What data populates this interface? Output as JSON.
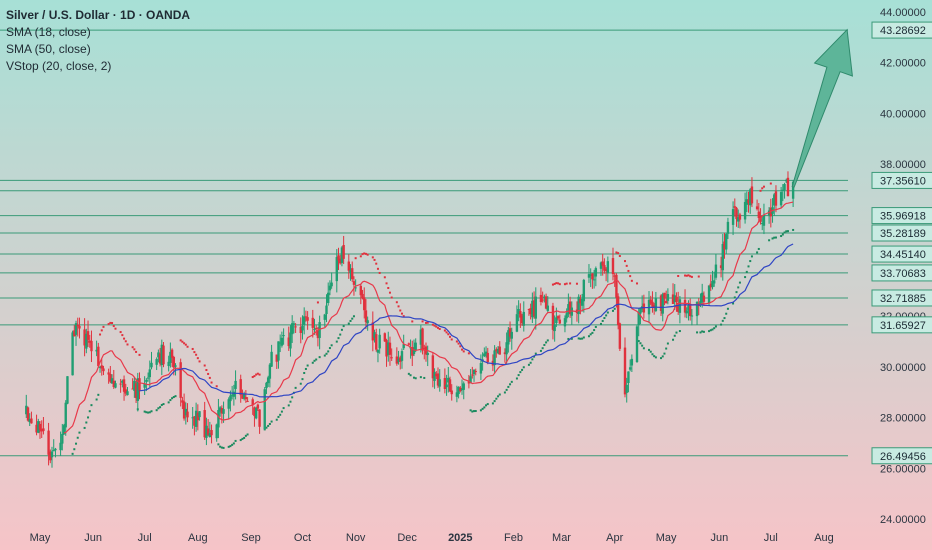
{
  "legend": {
    "title": "Silver / U.S. Dollar · 1D · OANDA",
    "indicators": [
      "SMA (18, close)",
      "SMA (50, close)",
      "VStop (20, close, 2)"
    ]
  },
  "colors": {
    "bg_top": "#a7e0d6",
    "bg_bottom": "#f6c4c8",
    "level_line": "#3a9a78",
    "level_box_fill": "#c8ebe2",
    "level_box_stroke": "#3a9a78",
    "candle_up": "#1f9e72",
    "candle_down": "#e0313d",
    "sma18": "#e8394a",
    "sma50": "#2f45c4",
    "vstop_up": "#1a8a5e",
    "vstop_down": "#e0313d",
    "arrow_fill": "#4fae8e"
  },
  "chart_data": {
    "type": "candlestick",
    "symbol": "XAGUSD",
    "ylim": [
      23.6,
      44.4
    ],
    "y_axis_ticks": [
      "44.00000",
      "42.00000",
      "40.00000",
      "38.00000",
      "32.00000",
      "30.00000",
      "28.00000",
      "26.00000",
      "24.00000"
    ],
    "x_axis_ticks": [
      "May",
      "Jun",
      "Jul",
      "Aug",
      "Sep",
      "Oct",
      "Nov",
      "Dec",
      "2025",
      "Feb",
      "Mar",
      "Apr",
      "May",
      "Jun",
      "Jul",
      "Aug"
    ],
    "horizontal_levels": [
      {
        "label": "43.28692",
        "value": 43.28692
      },
      {
        "label": "37.35610",
        "value": 37.3561
      },
      {
        "label": "35.96918",
        "value": 35.96918
      },
      {
        "label": "35.28189",
        "value": 35.28189
      },
      {
        "label": "34.45140",
        "value": 34.4514
      },
      {
        "label": "33.70683",
        "value": 33.70683
      },
      {
        "label": "32.71885",
        "value": 32.71885
      },
      {
        "label": "31.65927",
        "value": 31.65927
      },
      {
        "label": "26.49456",
        "value": 26.49456
      }
    ],
    "extra_levels": [
      36.95
    ],
    "price_path": [
      [
        "2024-04-22",
        28.2
      ],
      [
        "2024-04-30",
        27.6
      ],
      [
        "2024-05-07",
        26.6
      ],
      [
        "2024-05-14",
        27.2
      ],
      [
        "2024-05-20",
        31.5
      ],
      [
        "2024-05-28",
        31.2
      ],
      [
        "2024-06-04",
        30.2
      ],
      [
        "2024-06-10",
        29.6
      ],
      [
        "2024-06-17",
        29.3
      ],
      [
        "2024-06-24",
        29.0
      ],
      [
        "2024-07-01",
        29.5
      ],
      [
        "2024-07-10",
        30.5
      ],
      [
        "2024-07-17",
        30.4
      ],
      [
        "2024-07-24",
        28.3
      ],
      [
        "2024-08-01",
        28.0
      ],
      [
        "2024-08-07",
        27.4
      ],
      [
        "2024-08-14",
        28.4
      ],
      [
        "2024-08-21",
        29.3
      ],
      [
        "2024-08-28",
        29.0
      ],
      [
        "2024-09-06",
        28.0
      ],
      [
        "2024-09-13",
        30.3
      ],
      [
        "2024-09-20",
        31.0
      ],
      [
        "2024-09-27",
        31.5
      ],
      [
        "2024-10-04",
        31.8
      ],
      [
        "2024-10-11",
        31.4
      ],
      [
        "2024-10-18",
        33.5
      ],
      [
        "2024-10-22",
        34.5
      ],
      [
        "2024-10-29",
        33.9
      ],
      [
        "2024-11-05",
        32.6
      ],
      [
        "2024-11-11",
        31.0
      ],
      [
        "2024-11-18",
        30.8
      ],
      [
        "2024-11-25",
        30.4
      ],
      [
        "2024-12-02",
        30.6
      ],
      [
        "2024-12-09",
        31.2
      ],
      [
        "2024-12-16",
        29.8
      ],
      [
        "2024-12-23",
        29.4
      ],
      [
        "2024-12-31",
        29.1
      ],
      [
        "2025-01-07",
        29.7
      ],
      [
        "2025-01-14",
        30.1
      ],
      [
        "2025-01-21",
        30.5
      ],
      [
        "2025-01-28",
        30.9
      ],
      [
        "2025-02-04",
        32.0
      ],
      [
        "2025-02-11",
        32.3
      ],
      [
        "2025-02-18",
        32.6
      ],
      [
        "2025-02-25",
        31.5
      ],
      [
        "2025-03-04",
        32.0
      ],
      [
        "2025-03-11",
        32.6
      ],
      [
        "2025-03-18",
        33.7
      ],
      [
        "2025-03-25",
        34.0
      ],
      [
        "2025-04-01",
        33.8
      ],
      [
        "2025-04-04",
        30.5
      ],
      [
        "2025-04-07",
        29.0
      ],
      [
        "2025-04-14",
        31.7
      ],
      [
        "2025-04-21",
        32.6
      ],
      [
        "2025-04-28",
        32.5
      ],
      [
        "2025-05-05",
        32.7
      ],
      [
        "2025-05-12",
        32.2
      ],
      [
        "2025-05-19",
        32.6
      ],
      [
        "2025-05-26",
        32.9
      ],
      [
        "2025-06-02",
        34.2
      ],
      [
        "2025-06-06",
        35.7
      ],
      [
        "2025-06-13",
        36.2
      ],
      [
        "2025-06-17",
        36.9
      ],
      [
        "2025-06-24",
        36.0
      ],
      [
        "2025-06-30",
        36.2
      ],
      [
        "2025-07-07",
        36.8
      ],
      [
        "2025-07-14",
        37.3
      ]
    ],
    "projection_arrow": {
      "from": [
        "2025-07-14",
        37.1
      ],
      "to": [
        "2025-07-28",
        43.3
      ]
    }
  }
}
